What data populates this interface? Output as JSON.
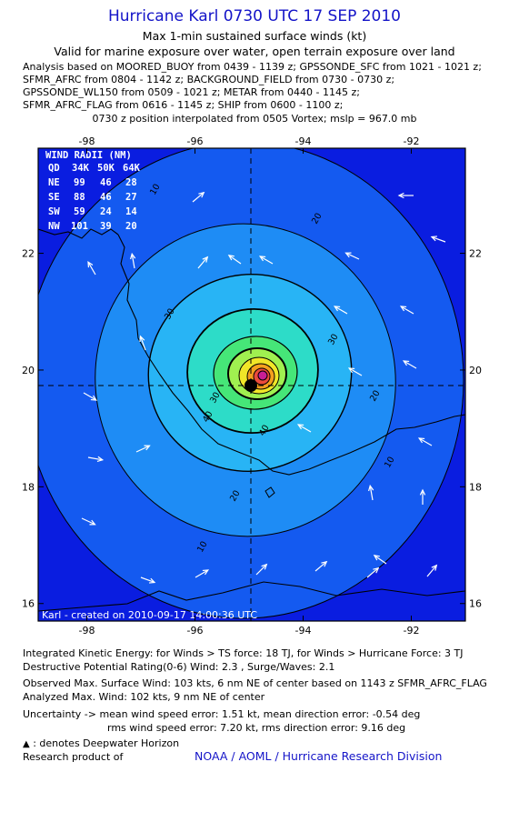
{
  "header": {
    "title": "Hurricane Karl 0730 UTC 17 SEP 2010",
    "subtitle1": "Max 1-min sustained surface winds (kt)",
    "subtitle2": "Valid for marine exposure over water, open terrain exposure over land",
    "analysis_lines": [
      "Analysis based on MOORED_BUOY from 0439 - 1139 z; GPSSONDE_SFC from 1021 - 1021 z;",
      "SFMR_AFRC from 0804 - 1142 z; BACKGROUND_FIELD from 0730 - 0730 z;",
      "GPSSONDE_WL150 from 0509 - 1021 z; METAR from 0440 - 1145 z;",
      "SFMR_AFRC_FLAG from 0616 - 1145 z; SHIP from 0600 - 1100 z;"
    ],
    "position_note": "0730 z position interpolated from 0505 Vortex; mslp = 967.0 mb"
  },
  "wind_radii": {
    "title": "WIND RADII (NM)",
    "header": [
      "QD",
      "34K",
      "50K",
      "64K"
    ],
    "rows": [
      [
        "NE",
        "99",
        "46",
        "28"
      ],
      [
        "SE",
        "88",
        "46",
        "27"
      ],
      [
        "SW",
        "59",
        "24",
        "14"
      ],
      [
        "NW",
        "101",
        "39",
        "20"
      ]
    ]
  },
  "chart_data": {
    "type": "contour",
    "x_ticks": [
      "-98",
      "-96",
      "-94",
      "-92"
    ],
    "y_ticks": [
      "22",
      "20",
      "18",
      "16"
    ],
    "x_tick_values": [
      -98,
      -96,
      -94,
      -92
    ],
    "y_tick_values": [
      22,
      20,
      18,
      16
    ],
    "xlim": [
      -98.9,
      -91.0
    ],
    "ylim": [
      15.7,
      23.8
    ],
    "grid": false,
    "storm_center": {
      "lon": -95.0,
      "lat": 19.6
    },
    "contour_levels_kt": [
      10,
      20,
      30,
      40,
      50,
      60,
      70,
      80,
      90,
      100
    ],
    "contour_labels": [
      "10",
      "10",
      "10",
      "20",
      "20",
      "20",
      "30",
      "30",
      "30",
      "40",
      "40"
    ],
    "credit_label": "Karl - created on 2010-09-17 14:00:36 UTC",
    "colors": {
      "c0": "#0a1de0",
      "c10": "#145af0",
      "c20": "#1e8cf5",
      "c30": "#28b4f5",
      "c40": "#2ddcc8",
      "c50": "#46e678",
      "c60": "#a0f050",
      "c70": "#f0e628",
      "c80": "#f5a01e",
      "c90": "#eb4b3c",
      "c100": "#c81e96"
    }
  },
  "footer": {
    "lines1": [
      "Integrated Kinetic Energy:  for Winds > TS force: 18 TJ,  for Winds > Hurricane Force: 3 TJ",
      "Destructive Potential Rating(0-6)   Wind: 2.3 , Surge/Waves: 2.1"
    ],
    "lines2": [
      "Observed Max. Surface Wind: 103 kts, 6 nm NE of center based on 1143 z SFMR_AFRC_FLAG",
      "Analyzed Max. Wind: 102 kts, 9 nm NE of center"
    ],
    "uncertainty1": "Uncertainty -> mean wind speed error: 1.51 kt,   mean direction error:  -0.54 deg",
    "uncertainty2": "rms wind speed error: 7.20 kt,   rms direction error: 9.16 deg",
    "deepwater": ": denotes Deepwater Horizon",
    "research": "Research product of",
    "credit": "NOAA / AOML / Hurricane Research Division"
  }
}
